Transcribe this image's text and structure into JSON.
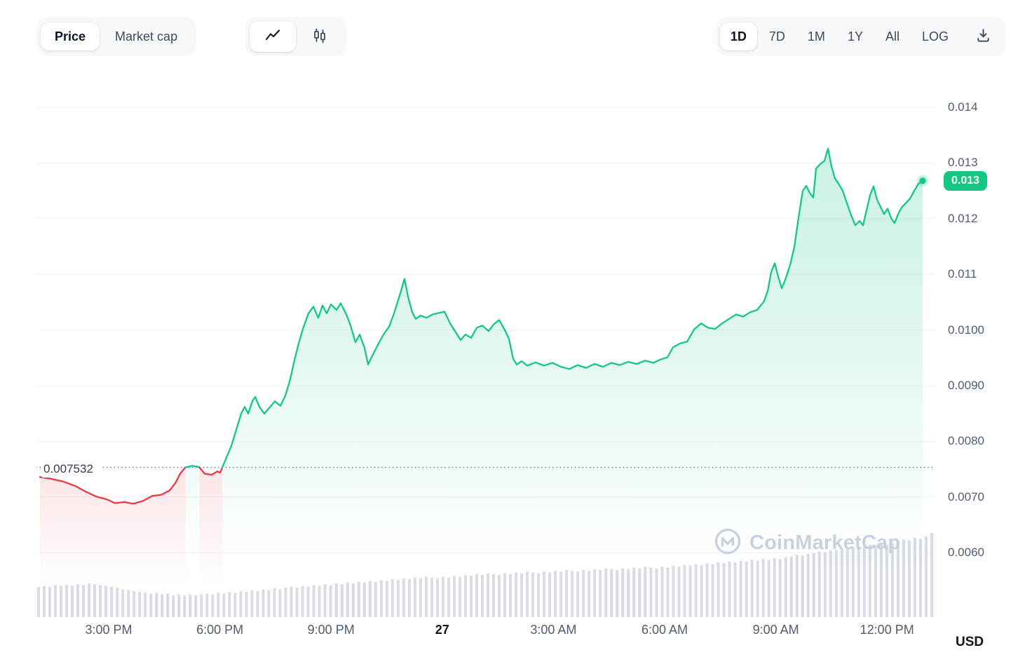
{
  "toolbar": {
    "metric_toggle": {
      "price": "Price",
      "market_cap": "Market cap"
    },
    "chart_type": {
      "line_icon": "line-chart-icon",
      "candle_icon": "candlestick-icon"
    },
    "ranges": [
      {
        "label": "1D",
        "selected": true
      },
      {
        "label": "7D",
        "selected": false
      },
      {
        "label": "1M",
        "selected": false
      },
      {
        "label": "1Y",
        "selected": false
      },
      {
        "label": "All",
        "selected": false
      },
      {
        "label": "LOG",
        "selected": false
      }
    ],
    "download_icon": "download-icon"
  },
  "chart_data": {
    "type": "area",
    "title": "1D price chart",
    "xlabel": "",
    "ylabel": "USD",
    "unit": "USD",
    "grid": true,
    "ylim": [
      0.006,
      0.014
    ],
    "open_price": 0.007532,
    "open_label": "0.007532",
    "last_price": 0.01268,
    "last_price_label": "0.013",
    "colors": {
      "up": "#16C784",
      "down": "#EA3943",
      "grid": "#f0f2f6",
      "baseline": "#666f80",
      "volume": "#d7dce6"
    },
    "y_ticks": [
      "0.014",
      "0.013",
      "0.012",
      "0.011",
      "0.0100",
      "0.0090",
      "0.0080",
      "0.0070",
      "0.0060"
    ],
    "y_tick_values": [
      0.014,
      0.013,
      0.012,
      0.011,
      0.01,
      0.009,
      0.008,
      0.007,
      0.006
    ],
    "x_ticks": [
      {
        "label": "3:00 PM"
      },
      {
        "label": "6:00 PM"
      },
      {
        "label": "9:00 PM"
      },
      {
        "label": "27",
        "emphasis": true
      },
      {
        "label": "3:00 AM"
      },
      {
        "label": "6:00 AM"
      },
      {
        "label": "9:00 AM"
      },
      {
        "label": "12:00 PM"
      }
    ],
    "points": [
      [
        5,
        0.00736
      ],
      [
        20,
        0.00733
      ],
      [
        38,
        0.00728
      ],
      [
        55,
        0.0072
      ],
      [
        70,
        0.0071
      ],
      [
        85,
        0.00701
      ],
      [
        100,
        0.00696
      ],
      [
        112,
        0.00689
      ],
      [
        125,
        0.00691
      ],
      [
        138,
        0.00688
      ],
      [
        152,
        0.00693
      ],
      [
        165,
        0.00702
      ],
      [
        178,
        0.00704
      ],
      [
        190,
        0.00712
      ],
      [
        198,
        0.00725
      ],
      [
        205,
        0.00742
      ],
      [
        212,
        0.00753
      ],
      [
        222,
        0.00756
      ],
      [
        232,
        0.00754
      ],
      [
        240,
        0.00742
      ],
      [
        250,
        0.0074
      ],
      [
        258,
        0.00746
      ],
      [
        262,
        0.00744
      ],
      [
        270,
        0.00768
      ],
      [
        278,
        0.00792
      ],
      [
        286,
        0.00825
      ],
      [
        292,
        0.0085
      ],
      [
        297,
        0.00862
      ],
      [
        302,
        0.0085
      ],
      [
        308,
        0.00872
      ],
      [
        312,
        0.0088
      ],
      [
        318,
        0.00862
      ],
      [
        325,
        0.0085
      ],
      [
        332,
        0.0086
      ],
      [
        340,
        0.00872
      ],
      [
        348,
        0.00864
      ],
      [
        355,
        0.00882
      ],
      [
        362,
        0.00912
      ],
      [
        368,
        0.00946
      ],
      [
        374,
        0.00976
      ],
      [
        380,
        0.01002
      ],
      [
        388,
        0.0103
      ],
      [
        395,
        0.01042
      ],
      [
        402,
        0.01022
      ],
      [
        408,
        0.01044
      ],
      [
        414,
        0.0103
      ],
      [
        420,
        0.01046
      ],
      [
        428,
        0.01036
      ],
      [
        434,
        0.01048
      ],
      [
        442,
        0.01028
      ],
      [
        448,
        0.01008
      ],
      [
        455,
        0.00978
      ],
      [
        461,
        0.00992
      ],
      [
        468,
        0.00968
      ],
      [
        473,
        0.00938
      ],
      [
        480,
        0.00956
      ],
      [
        488,
        0.00976
      ],
      [
        495,
        0.00992
      ],
      [
        503,
        0.01006
      ],
      [
        510,
        0.0103
      ],
      [
        518,
        0.01062
      ],
      [
        525,
        0.01092
      ],
      [
        530,
        0.0106
      ],
      [
        536,
        0.01032
      ],
      [
        541,
        0.0102
      ],
      [
        548,
        0.01026
      ],
      [
        556,
        0.01022
      ],
      [
        565,
        0.01028
      ],
      [
        575,
        0.01031
      ],
      [
        582,
        0.01033
      ],
      [
        590,
        0.01012
      ],
      [
        598,
        0.00996
      ],
      [
        605,
        0.00982
      ],
      [
        612,
        0.00992
      ],
      [
        620,
        0.00986
      ],
      [
        628,
        0.01004
      ],
      [
        636,
        0.01008
      ],
      [
        645,
        0.00998
      ],
      [
        652,
        0.0101
      ],
      [
        660,
        0.01018
      ],
      [
        668,
        0.01
      ],
      [
        674,
        0.00984
      ],
      [
        680,
        0.00948
      ],
      [
        685,
        0.00938
      ],
      [
        692,
        0.00944
      ],
      [
        700,
        0.00936
      ],
      [
        712,
        0.00942
      ],
      [
        724,
        0.00936
      ],
      [
        736,
        0.00941
      ],
      [
        748,
        0.00934
      ],
      [
        760,
        0.0093
      ],
      [
        772,
        0.00937
      ],
      [
        784,
        0.00932
      ],
      [
        796,
        0.00939
      ],
      [
        808,
        0.00934
      ],
      [
        820,
        0.00941
      ],
      [
        832,
        0.00937
      ],
      [
        844,
        0.00943
      ],
      [
        856,
        0.00939
      ],
      [
        868,
        0.00945
      ],
      [
        880,
        0.00941
      ],
      [
        890,
        0.00947
      ],
      [
        900,
        0.00951
      ],
      [
        908,
        0.00969
      ],
      [
        918,
        0.00976
      ],
      [
        928,
        0.00979
      ],
      [
        938,
        0.01001
      ],
      [
        948,
        0.01012
      ],
      [
        958,
        0.01004
      ],
      [
        968,
        0.01002
      ],
      [
        978,
        0.01012
      ],
      [
        988,
        0.0102
      ],
      [
        998,
        0.01028
      ],
      [
        1008,
        0.01024
      ],
      [
        1018,
        0.01032
      ],
      [
        1028,
        0.01036
      ],
      [
        1038,
        0.01052
      ],
      [
        1043,
        0.0107
      ],
      [
        1048,
        0.01104
      ],
      [
        1053,
        0.0112
      ],
      [
        1058,
        0.01096
      ],
      [
        1063,
        0.01075
      ],
      [
        1068,
        0.0109
      ],
      [
        1075,
        0.01117
      ],
      [
        1081,
        0.01149
      ],
      [
        1087,
        0.01202
      ],
      [
        1093,
        0.0125
      ],
      [
        1098,
        0.01259
      ],
      [
        1103,
        0.01246
      ],
      [
        1108,
        0.01238
      ],
      [
        1112,
        0.0129
      ],
      [
        1118,
        0.01298
      ],
      [
        1124,
        0.01304
      ],
      [
        1129,
        0.01326
      ],
      [
        1134,
        0.01294
      ],
      [
        1139,
        0.01272
      ],
      [
        1144,
        0.01263
      ],
      [
        1150,
        0.0125
      ],
      [
        1156,
        0.01228
      ],
      [
        1162,
        0.01206
      ],
      [
        1168,
        0.01188
      ],
      [
        1174,
        0.01196
      ],
      [
        1179,
        0.01188
      ],
      [
        1184,
        0.01215
      ],
      [
        1189,
        0.01242
      ],
      [
        1194,
        0.01258
      ],
      [
        1199,
        0.01234
      ],
      [
        1204,
        0.01221
      ],
      [
        1209,
        0.01208
      ],
      [
        1214,
        0.01218
      ],
      [
        1219,
        0.01201
      ],
      [
        1224,
        0.01192
      ],
      [
        1229,
        0.01208
      ],
      [
        1234,
        0.0122
      ],
      [
        1240,
        0.01228
      ],
      [
        1246,
        0.01236
      ],
      [
        1252,
        0.0125
      ],
      [
        1258,
        0.01263
      ],
      [
        1264,
        0.01268
      ]
    ],
    "volume_rel": [
      0.36,
      0.37,
      0.36,
      0.38,
      0.37,
      0.38,
      0.37,
      0.39,
      0.38,
      0.4,
      0.39,
      0.38,
      0.37,
      0.36,
      0.35,
      0.33,
      0.32,
      0.31,
      0.3,
      0.29,
      0.28,
      0.29,
      0.27,
      0.28,
      0.26,
      0.27,
      0.26,
      0.27,
      0.26,
      0.27,
      0.28,
      0.27,
      0.29,
      0.28,
      0.3,
      0.29,
      0.31,
      0.3,
      0.32,
      0.31,
      0.33,
      0.32,
      0.34,
      0.33,
      0.35,
      0.36,
      0.35,
      0.37,
      0.36,
      0.38,
      0.37,
      0.39,
      0.38,
      0.4,
      0.39,
      0.41,
      0.4,
      0.42,
      0.41,
      0.43,
      0.42,
      0.44,
      0.43,
      0.45,
      0.44,
      0.46,
      0.45,
      0.47,
      0.46,
      0.48,
      0.47,
      0.46,
      0.48,
      0.47,
      0.49,
      0.48,
      0.5,
      0.49,
      0.51,
      0.5,
      0.52,
      0.51,
      0.5,
      0.52,
      0.51,
      0.53,
      0.52,
      0.54,
      0.53,
      0.52,
      0.54,
      0.53,
      0.55,
      0.54,
      0.56,
      0.55,
      0.54,
      0.56,
      0.55,
      0.57,
      0.56,
      0.58,
      0.57,
      0.56,
      0.58,
      0.57,
      0.59,
      0.58,
      0.6,
      0.59,
      0.58,
      0.6,
      0.59,
      0.61,
      0.6,
      0.62,
      0.61,
      0.63,
      0.62,
      0.64,
      0.63,
      0.65,
      0.64,
      0.66,
      0.65,
      0.67,
      0.66,
      0.68,
      0.67,
      0.69,
      0.68,
      0.7,
      0.69,
      0.71,
      0.72,
      0.74,
      0.73,
      0.75,
      0.76,
      0.78,
      0.77,
      0.79,
      0.8,
      0.82,
      0.81,
      0.83,
      0.82,
      0.84,
      0.86,
      0.85,
      0.87,
      0.86,
      0.88,
      0.9,
      0.92,
      0.91,
      0.94,
      0.93,
      0.96,
      1.0
    ]
  },
  "watermark": {
    "label": "CoinMarketCap"
  }
}
